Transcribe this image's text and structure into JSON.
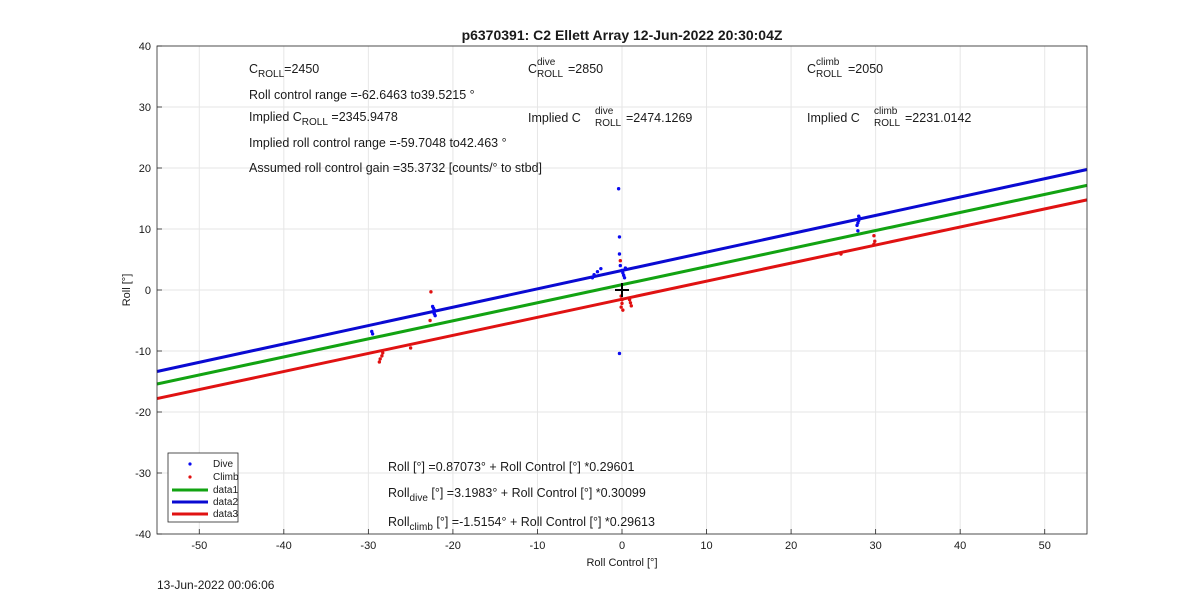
{
  "chart_data": {
    "type": "scatter",
    "title": "p6370391: C2 Ellett Array 12-Jun-2022 20:30:04Z",
    "xlabel": "Roll Control [°]",
    "ylabel": "Roll [°]",
    "xlim": [
      -55,
      55
    ],
    "ylim": [
      -40,
      40
    ],
    "xticks": [
      -50,
      -40,
      -30,
      -20,
      -10,
      0,
      10,
      20,
      30,
      40,
      50
    ],
    "yticks": [
      -40,
      -30,
      -20,
      -10,
      0,
      10,
      20,
      30,
      40
    ],
    "grid": true,
    "legend_position": "bottom-left",
    "series": [
      {
        "name": "Dive",
        "kind": "points",
        "color": "#0a0af0",
        "points": [
          [
            -29.6,
            -6.8
          ],
          [
            -29.5,
            -7.2
          ],
          [
            -22.4,
            -2.7
          ],
          [
            -22.3,
            -3.0
          ],
          [
            -22.2,
            -3.3
          ],
          [
            -22.3,
            -3.6
          ],
          [
            -22.2,
            -3.9
          ],
          [
            -22.1,
            -4.2
          ],
          [
            -3.5,
            2.0
          ],
          [
            -3.3,
            2.5
          ],
          [
            -2.9,
            3.0
          ],
          [
            -2.5,
            3.5
          ],
          [
            -0.4,
            16.6
          ],
          [
            -0.3,
            8.7
          ],
          [
            -0.3,
            5.9
          ],
          [
            -0.2,
            4.0
          ],
          [
            -0.3,
            -10.4
          ],
          [
            0.0,
            3.2
          ],
          [
            0.1,
            2.8
          ],
          [
            0.2,
            2.4
          ],
          [
            0.3,
            2.0
          ],
          [
            0.4,
            3.6
          ],
          [
            27.8,
            10.6
          ],
          [
            27.9,
            11.0
          ],
          [
            28.0,
            11.4
          ],
          [
            28.1,
            11.8
          ],
          [
            28.0,
            12.1
          ],
          [
            27.9,
            9.7
          ]
        ]
      },
      {
        "name": "Climb",
        "kind": "points",
        "color": "#e01010",
        "points": [
          [
            -28.7,
            -11.8
          ],
          [
            -28.6,
            -11.3
          ],
          [
            -28.4,
            -10.8
          ],
          [
            -28.3,
            -10.3
          ],
          [
            -25.0,
            -9.5
          ],
          [
            -22.6,
            -0.3
          ],
          [
            -22.7,
            -5.0
          ],
          [
            -0.2,
            4.8
          ],
          [
            -0.1,
            -1.0
          ],
          [
            0.0,
            -1.6
          ],
          [
            0.0,
            -2.2
          ],
          [
            -0.1,
            -2.8
          ],
          [
            0.1,
            -3.3
          ],
          [
            0.9,
            -1.6
          ],
          [
            1.0,
            -2.1
          ],
          [
            1.1,
            -2.6
          ],
          [
            25.9,
            5.9
          ],
          [
            29.8,
            7.5
          ],
          [
            29.9,
            8.0
          ],
          [
            29.8,
            8.9
          ]
        ]
      },
      {
        "name": "data1",
        "kind": "line",
        "color": "#12a312",
        "intercept": 0.87073,
        "slope": 0.29601
      },
      {
        "name": "data2",
        "kind": "line",
        "color": "#0a0ad2",
        "intercept": 3.1983,
        "slope": 0.30099
      },
      {
        "name": "data3",
        "kind": "line",
        "color": "#e01212",
        "intercept": -1.5154,
        "slope": 0.29613
      }
    ],
    "marker_plus": [
      0,
      0
    ],
    "annotations_top_left": {
      "c_roll_main": "C",
      "c_roll_sub": "ROLL",
      "c_roll_val": "=2450",
      "roll_range": "Roll control range =-62.6463 to39.5215 °",
      "implied_main": "Implied C",
      "implied_sub": "ROLL",
      "implied_val": " =2345.9478",
      "implied_range": "Implied roll control range =-59.7048 to42.463 °",
      "gain": "Assumed roll control gain =35.3732 [counts/° to stbd]"
    },
    "annotations_top_mid": {
      "c_main": "C",
      "c_sup": "dive",
      "c_sub": "ROLL",
      "c_val": "=2850",
      "implied_main": "Implied C",
      "implied_sup": "dive",
      "implied_sub": "ROLL",
      "implied_val": " =2474.1269"
    },
    "annotations_top_right": {
      "c_main": "C",
      "c_sup": "climb",
      "c_sub": "ROLL",
      "c_val": "=2050",
      "implied_main": "Implied C",
      "implied_sup": "climb",
      "implied_sub": "ROLL",
      "implied_val": " =2231.0142"
    },
    "annotations_bottom": {
      "eq1": "Roll [°] =0.87073° + Roll Control [°] *0.29601",
      "eq2_main": "Roll",
      "eq2_sub": "dive",
      "eq2_rest": " [°] =3.1983° + Roll Control [°] *0.30099",
      "eq3_main": "Roll",
      "eq3_sub": "climb",
      "eq3_rest": " [°] =-1.5154° + Roll Control [°] *0.29613"
    },
    "footer_timestamp": "13-Jun-2022 00:06:06"
  }
}
